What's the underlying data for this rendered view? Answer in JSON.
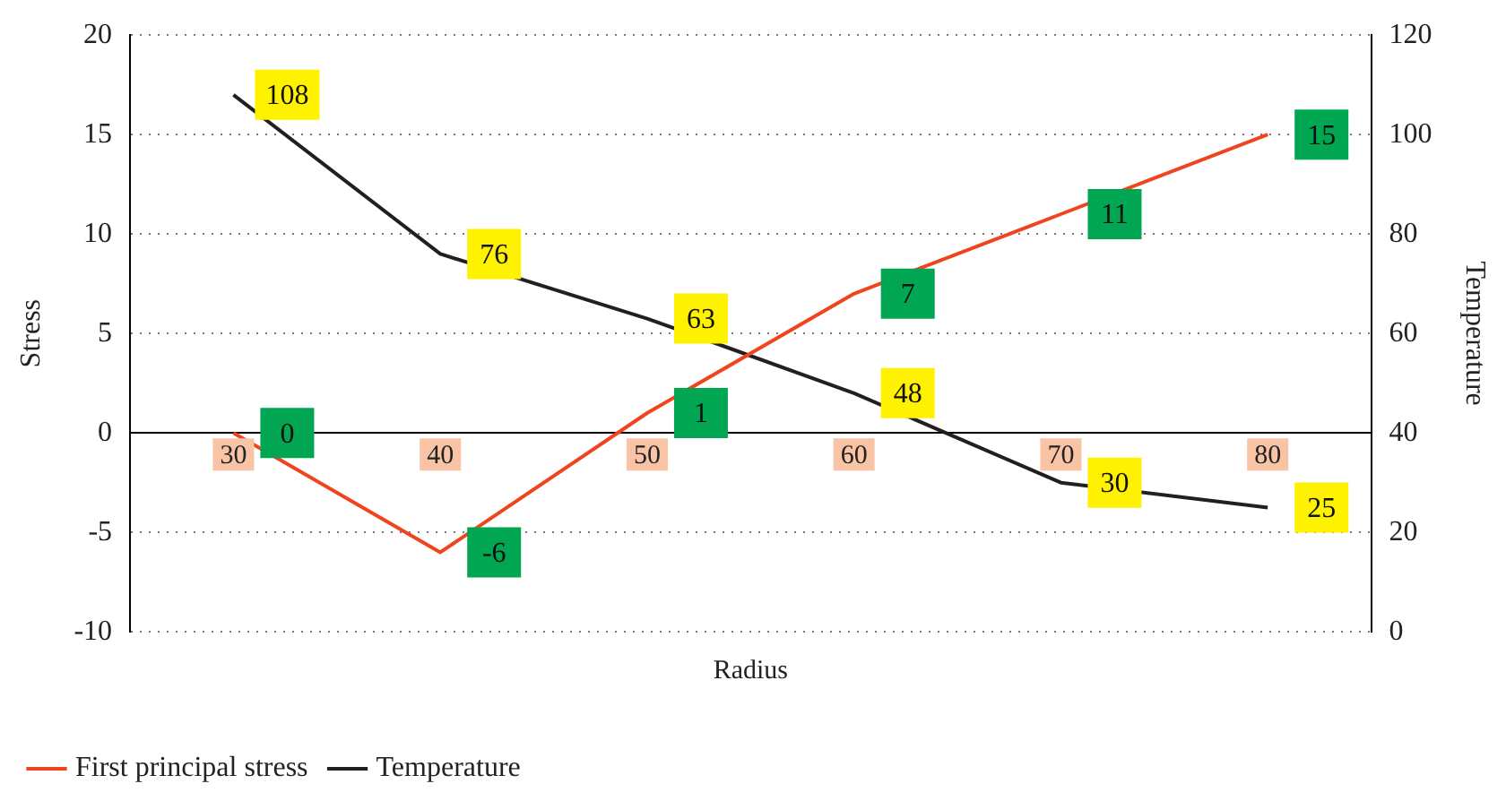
{
  "chart_data": {
    "type": "line",
    "xlabel": "Radius",
    "ylabel": "Stress",
    "y2label": "Temperature",
    "categories": [
      "30",
      "40",
      "50",
      "60",
      "70",
      "80"
    ],
    "series": [
      {
        "name": "First principal stress",
        "color": "#f0441e",
        "values": [
          0,
          -6,
          1,
          7,
          11,
          15
        ]
      },
      {
        "name": "Temperature",
        "color": "#231f20",
        "values": [
          108,
          76,
          63,
          48,
          30,
          25
        ],
        "axis": "y2"
      }
    ],
    "ylim": [
      -10,
      20
    ],
    "yticks": [
      -10,
      -5,
      0,
      5,
      10,
      15,
      20
    ],
    "y2lim": [
      0,
      120
    ],
    "y2ticks": [
      0,
      20,
      40,
      60,
      80,
      100,
      120
    ],
    "grid": "y",
    "legend": "bottom left",
    "data_labels": true,
    "marker": "none"
  }
}
